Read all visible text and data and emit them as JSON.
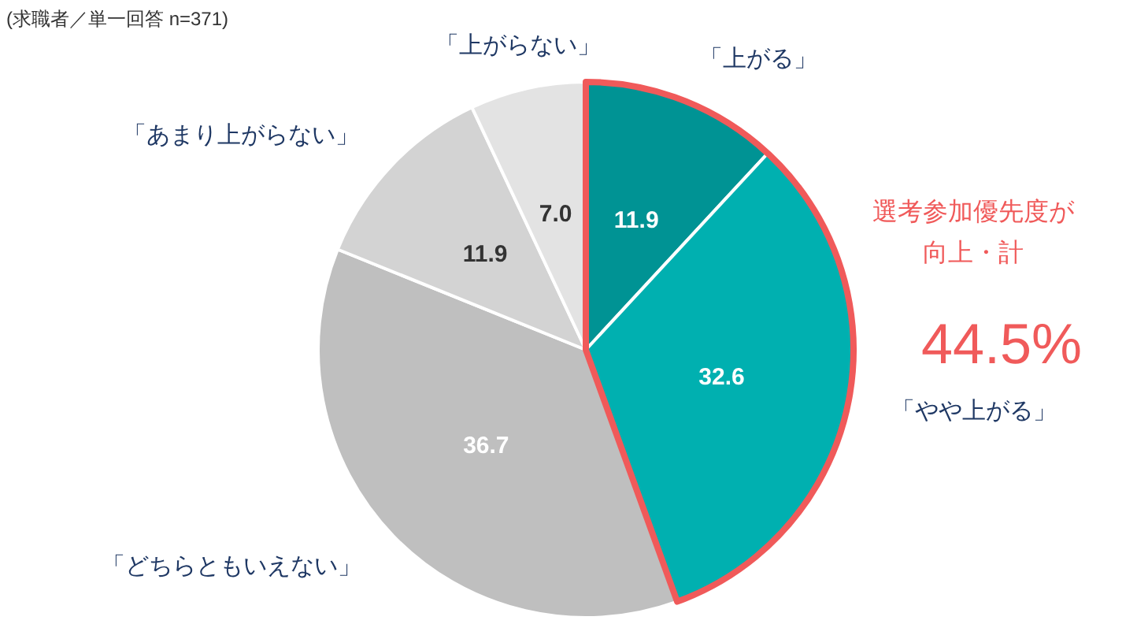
{
  "chart_data": {
    "type": "pie",
    "categories": [
      "「上がる」",
      "「やや上がる」",
      "「どちらともいえない」",
      "「あまり上がらない」",
      "「上がらない」"
    ],
    "values": [
      11.9,
      32.6,
      36.7,
      11.9,
      7.0
    ],
    "value_labels": [
      "11.9",
      "32.6",
      "36.7",
      "11.9",
      "7.0"
    ],
    "colors": [
      "#009394",
      "#00b0b0",
      "#bfbfbf",
      "#d3d3d3",
      "#e3e3e3"
    ],
    "annotations": [
      "(求職者／単一回答 n=371)",
      "選考参加優先度が",
      "向上・計",
      "44.5%"
    ],
    "legend": false
  }
}
